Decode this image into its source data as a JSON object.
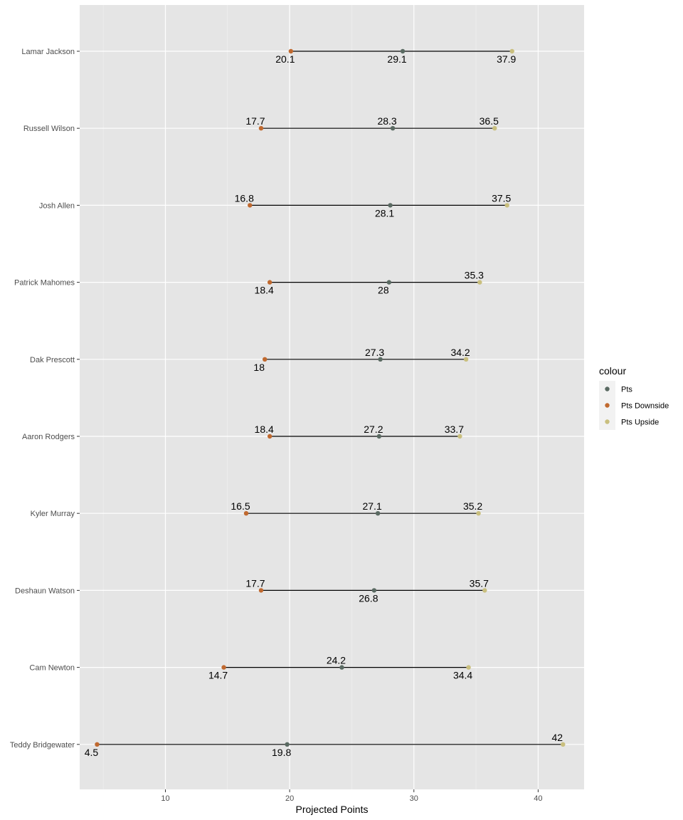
{
  "chart_data": {
    "type": "dumbbell",
    "xlabel": "Projected Points",
    "ylabel": "",
    "xlim": [
      3.1,
      43.7
    ],
    "x_ticks": [
      10,
      20,
      30,
      40
    ],
    "grid": true,
    "legend": {
      "title": "colour",
      "placement": "right",
      "entries": [
        "Pts",
        "Pts Downside",
        "Pts Upside"
      ]
    },
    "colors": {
      "Pts": "#5a6a62",
      "Pts Downside": "#c0692f",
      "Pts Upside": "#c9bf7e",
      "panel": "#e5e5e5",
      "grid": "#ffffff",
      "segment": "#000000"
    },
    "categories": [
      "Lamar Jackson",
      "Russell Wilson",
      "Josh Allen",
      "Patrick Mahomes",
      "Dak Prescott",
      "Aaron Rodgers",
      "Kyler Murray",
      "Deshaun Watson",
      "Cam Newton",
      "Teddy Bridgewater"
    ],
    "series": [
      {
        "name": "Pts Downside",
        "values": [
          20.1,
          17.7,
          16.8,
          18.4,
          18,
          18.4,
          16.5,
          17.7,
          14.7,
          4.5
        ]
      },
      {
        "name": "Pts",
        "values": [
          29.1,
          28.3,
          28.1,
          28,
          27.3,
          27.2,
          27.1,
          26.8,
          24.2,
          19.8
        ]
      },
      {
        "name": "Pts Upside",
        "values": [
          37.9,
          36.5,
          37.5,
          35.3,
          34.2,
          33.7,
          35.2,
          35.7,
          34.4,
          42
        ]
      }
    ],
    "value_labels": [
      [
        "below",
        "below",
        "below"
      ],
      [
        "above",
        "above",
        "above"
      ],
      [
        "above",
        "below",
        "above"
      ],
      [
        "below",
        "below",
        "above"
      ],
      [
        "below",
        "above",
        "above"
      ],
      [
        "above",
        "above",
        "above"
      ],
      [
        "above",
        "above",
        "above"
      ],
      [
        "above",
        "below",
        "above"
      ],
      [
        "below",
        "above",
        "below"
      ],
      [
        "below",
        "below",
        "above"
      ]
    ]
  }
}
